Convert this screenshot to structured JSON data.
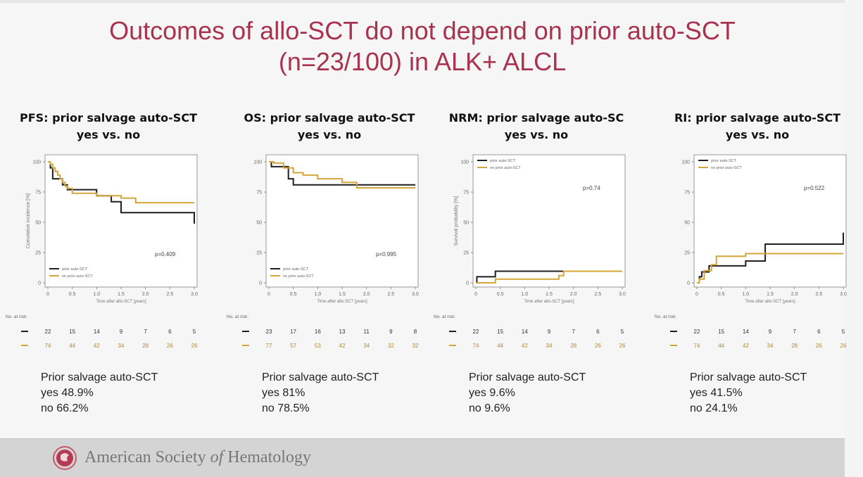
{
  "slide": {
    "title_line1": "Outcomes of allo-SCT do not depend on prior auto-SCT",
    "title_line2": "(n=23/100) in ALK+ ALCL"
  },
  "colors": {
    "yes": "#1f1f1f",
    "no": "#d4a53a",
    "title": "#a83250"
  },
  "footer": {
    "org_name_part1": "American Society",
    "org_name_part2": "of",
    "org_name_part3": "Hematology",
    "logo_icon": "ash-logo-icon"
  },
  "chart_data": [
    {
      "type": "line",
      "key": "pfs",
      "title_line1": "PFS: prior salvage auto-SCT",
      "title_line2": "yes vs. no",
      "xlabel": "Time after allo-SCT [years]",
      "ylabel": "Cumulative incidence [%]",
      "x_ticks": [
        "0",
        "0.5",
        "1.0",
        "1.5",
        "2.0",
        "2.5",
        "3.0"
      ],
      "y_ticks": [
        "0",
        "25",
        "50",
        "75",
        "100"
      ],
      "xlim": [
        0,
        3
      ],
      "ylim": [
        0,
        100
      ],
      "p_value": "p=0.409",
      "legend": [
        "prior auto-SCT",
        "no prior auto-SCT"
      ],
      "legend_pos": "bottom-left",
      "series": [
        {
          "name": "prior auto-SCT",
          "color_key": "yes",
          "x": [
            0,
            0.05,
            0.1,
            0.2,
            0.3,
            0.4,
            0.5,
            1.0,
            1.3,
            1.5,
            3.0
          ],
          "y": [
            100,
            95,
            86,
            86,
            81,
            77,
            77,
            72,
            67,
            58,
            48.9
          ]
        },
        {
          "name": "no prior auto-SCT",
          "color_key": "yes_no",
          "x": [
            0,
            0.05,
            0.1,
            0.15,
            0.2,
            0.25,
            0.3,
            0.35,
            0.4,
            0.5,
            1.0,
            1.5,
            1.8,
            3.0
          ],
          "y": [
            100,
            98,
            95,
            92,
            89,
            86,
            83,
            80,
            78,
            74,
            72,
            70,
            66.2,
            66.2
          ]
        }
      ],
      "risk_label": "No. at risk:",
      "risk_rows": [
        [
          "22",
          "15",
          "14",
          "9",
          "7",
          "6",
          "5"
        ],
        [
          "74",
          "44",
          "42",
          "34",
          "28",
          "26",
          "26"
        ]
      ],
      "summary": [
        "Prior salvage auto-SCT",
        "yes 48.9%",
        "no 66.2%"
      ]
    },
    {
      "type": "line",
      "key": "os",
      "title_line1": "OS: prior salvage auto-SCT",
      "title_line2": "yes vs. no",
      "xlabel": "Time after allo-SCT [years]",
      "ylabel": "",
      "x_ticks": [
        "0",
        "0.5",
        "1.0",
        "1.5",
        "2.0",
        "2.5",
        "3.0"
      ],
      "y_ticks": [
        "0",
        "25",
        "50",
        "75",
        "100"
      ],
      "xlim": [
        0,
        3
      ],
      "ylim": [
        0,
        100
      ],
      "p_value": "p=0.995",
      "legend": [
        "prior auto-SCT",
        "no prior auto-SCT"
      ],
      "legend_pos": "bottom-left",
      "series": [
        {
          "name": "prior auto-SCT",
          "color_key": "yes",
          "x": [
            0,
            0.05,
            0.3,
            0.4,
            0.5,
            3.0
          ],
          "y": [
            100,
            96,
            96,
            86,
            81,
            81
          ]
        },
        {
          "name": "no prior auto-SCT",
          "color_key": "no",
          "x": [
            0,
            0.1,
            0.3,
            0.5,
            0.7,
            1.0,
            1.5,
            1.8,
            3.0
          ],
          "y": [
            100,
            99,
            95,
            91,
            89,
            86,
            83,
            78.5,
            78.5
          ]
        }
      ],
      "risk_label": "No. at risk:",
      "risk_rows": [
        [
          "23",
          "17",
          "16",
          "13",
          "11",
          "9",
          "8"
        ],
        [
          "77",
          "57",
          "53",
          "42",
          "34",
          "32",
          "32"
        ]
      ],
      "summary": [
        "Prior salvage auto-SCT",
        "yes 81%",
        "no 78.5%"
      ]
    },
    {
      "type": "line",
      "key": "nrm",
      "title_line1": "NRM: prior salvage auto-SC",
      "title_line2": "yes vs. no",
      "xlabel": "Time after allo-SCT [years]",
      "ylabel": "Survival probability [%]",
      "x_ticks": [
        "0",
        "0.5",
        "1.0",
        "1.5",
        "2.0",
        "2.5",
        "3.0"
      ],
      "y_ticks": [
        "0",
        "25",
        "50",
        "75",
        "100"
      ],
      "xlim": [
        0,
        3
      ],
      "ylim": [
        0,
        100
      ],
      "p_value": "p=0.74",
      "legend": [
        "prior auto-SCT",
        "no prior auto-SCT"
      ],
      "legend_pos": "top-left",
      "series": [
        {
          "name": "prior auto-SCT",
          "color_key": "yes",
          "x": [
            0,
            0.02,
            0.4,
            3.0
          ],
          "y": [
            0,
            5,
            9.6,
            9.6
          ]
        },
        {
          "name": "no prior auto-SCT",
          "color_key": "no",
          "x": [
            0,
            0.3,
            0.4,
            1.1,
            1.7,
            1.8,
            3.0
          ],
          "y": [
            0,
            0,
            3,
            3,
            6,
            9.6,
            9.6
          ]
        }
      ],
      "risk_label": "No. at risk:",
      "risk_rows": [
        [
          "22",
          "15",
          "14",
          "9",
          "7",
          "6",
          "5"
        ],
        [
          "74",
          "44",
          "42",
          "34",
          "28",
          "26",
          "26"
        ]
      ],
      "summary": [
        "Prior salvage auto-SCT",
        "yes 9.6%",
        "no 9.6%"
      ]
    },
    {
      "type": "line",
      "key": "ri",
      "title_line1": "RI: prior salvage auto-SCT",
      "title_line2": "yes vs. no",
      "xlabel": "Time after allo-SCT [years]",
      "ylabel": "",
      "x_ticks": [
        "0",
        "0.5",
        "1.0",
        "1.5",
        "2.0",
        "2.5",
        "3.0"
      ],
      "y_ticks": [
        "0",
        "25",
        "50",
        "75",
        "100"
      ],
      "xlim": [
        0,
        3
      ],
      "ylim": [
        0,
        100
      ],
      "p_value": "p=0.522",
      "legend": [
        "prior auto-SCT",
        "no prior auto-SCT"
      ],
      "legend_pos": "top-left",
      "series": [
        {
          "name": "prior auto-SCT",
          "color_key": "yes",
          "x": [
            0,
            0.05,
            0.1,
            0.25,
            0.5,
            1.0,
            1.4,
            3.0,
            3.0
          ],
          "y": [
            0,
            5,
            9,
            14,
            14,
            18,
            32,
            32,
            41.5
          ]
        },
        {
          "name": "no prior auto-SCT",
          "color_key": "no",
          "x": [
            0,
            0.05,
            0.15,
            0.3,
            0.4,
            0.7,
            1.0,
            1.4,
            3.0
          ],
          "y": [
            0,
            3,
            10,
            15,
            22,
            22,
            24.1,
            24.1,
            24.1
          ]
        }
      ],
      "risk_label": "No. at risk:",
      "risk_rows": [
        [
          "22",
          "15",
          "14",
          "9",
          "7",
          "6",
          "5"
        ],
        [
          "74",
          "44",
          "42",
          "34",
          "28",
          "26",
          "26"
        ]
      ],
      "summary": [
        "Prior salvage auto-SCT",
        "yes 41.5%",
        "no 24.1%"
      ]
    }
  ]
}
